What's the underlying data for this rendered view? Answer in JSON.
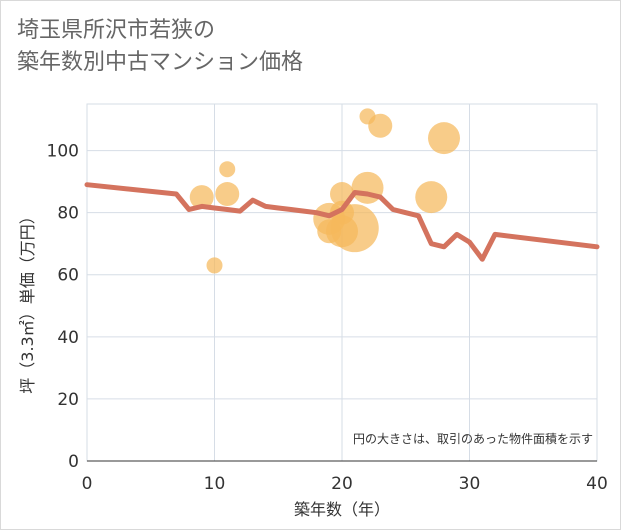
{
  "title_line1": "埼玉県所沢市若狭の",
  "title_line2": "築年数別中古マンション価格",
  "chart_data": {
    "type": "scatter",
    "title": "埼玉県所沢市若狭の築年数別中古マンション価格",
    "xlabel": "築年数（年）",
    "ylabel": "坪（3.3㎡）単価（万円）",
    "note": "円の大きさは、取引のあった物件面積を示す",
    "xlim": [
      0,
      40
    ],
    "ylim": [
      0,
      115
    ],
    "xticks": [
      0,
      10,
      20,
      30,
      40
    ],
    "yticks": [
      0,
      20,
      40,
      60,
      80,
      100
    ],
    "grid": true,
    "colors": {
      "bubble": "#f5b95c",
      "line": "#d4735e",
      "grid": "#d6dde6"
    },
    "bubbles": [
      {
        "x": 9,
        "y": 85,
        "size": 2
      },
      {
        "x": 10,
        "y": 63,
        "size": 1
      },
      {
        "x": 11,
        "y": 94,
        "size": 1
      },
      {
        "x": 11,
        "y": 86,
        "size": 2
      },
      {
        "x": 19,
        "y": 78,
        "size": 3
      },
      {
        "x": 19,
        "y": 74,
        "size": 2
      },
      {
        "x": 20,
        "y": 86,
        "size": 2
      },
      {
        "x": 20,
        "y": 80,
        "size": 2
      },
      {
        "x": 20,
        "y": 74,
        "size": 3
      },
      {
        "x": 21,
        "y": 75,
        "size": 5
      },
      {
        "x": 22,
        "y": 88,
        "size": 3
      },
      {
        "x": 22,
        "y": 111,
        "size": 1
      },
      {
        "x": 23,
        "y": 108,
        "size": 2
      },
      {
        "x": 27,
        "y": 85,
        "size": 3
      },
      {
        "x": 28,
        "y": 104,
        "size": 3
      }
    ],
    "trend": {
      "x": [
        0,
        7,
        8,
        9,
        10,
        11,
        12,
        13,
        14,
        15,
        16,
        17,
        18,
        19,
        20,
        21,
        22,
        23,
        24,
        25,
        26,
        27,
        28,
        29,
        30,
        31,
        32,
        40
      ],
      "y": [
        89,
        86,
        81,
        82,
        81.5,
        81,
        80.5,
        84,
        82,
        81.5,
        81,
        80.5,
        80,
        79,
        81,
        86.5,
        86,
        85,
        81,
        80,
        79,
        70,
        69,
        73,
        70.5,
        65,
        73,
        69
      ]
    }
  }
}
